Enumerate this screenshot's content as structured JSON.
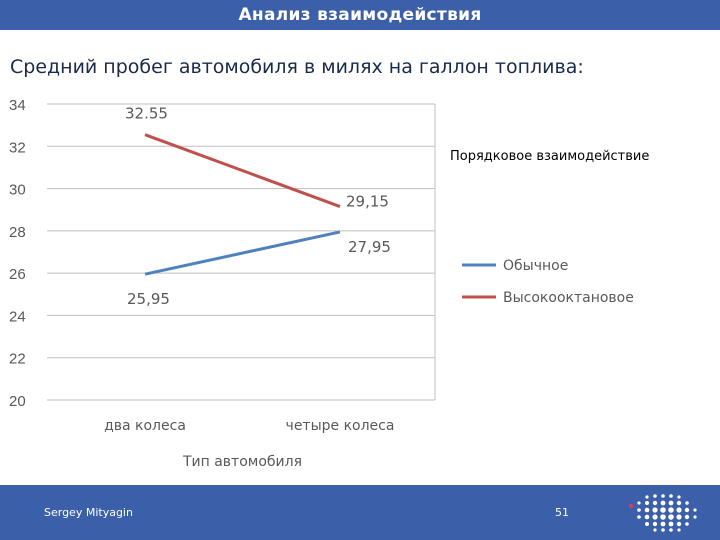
{
  "header": {
    "title": "Анализ взаимодействия"
  },
  "slide": {
    "subtitle": "Средний пробег автомобиля в милях на галлон топлива:"
  },
  "chart_data": {
    "type": "line",
    "categories": [
      "два колеса",
      "четыре колеса"
    ],
    "series": [
      {
        "name": "Обычное",
        "values": [
          25.95,
          27.95
        ],
        "labels": [
          "25,95",
          "27,95"
        ],
        "color": "#4f81bd"
      },
      {
        "name": "Высокооктановое",
        "values": [
          32.55,
          29.15
        ],
        "labels": [
          "32.55",
          "29,15"
        ],
        "color": "#c0504d"
      }
    ],
    "xlabel": "Тип автомобиля",
    "ylabel": "",
    "ylim": [
      20,
      34
    ],
    "yticks": [
      20,
      22,
      24,
      26,
      28,
      30,
      32,
      34
    ],
    "grid": true,
    "legend_position": "right",
    "annotation": "Порядковое взаимодействие"
  },
  "footer": {
    "presenter": "Sergey Mityagin",
    "page": "51"
  },
  "colors": {
    "bar": "#3b5fa8",
    "grid": "#bfbfbf",
    "axis_text": "#595959"
  },
  "icons": {
    "logo": "dotted-sphere-logo"
  }
}
